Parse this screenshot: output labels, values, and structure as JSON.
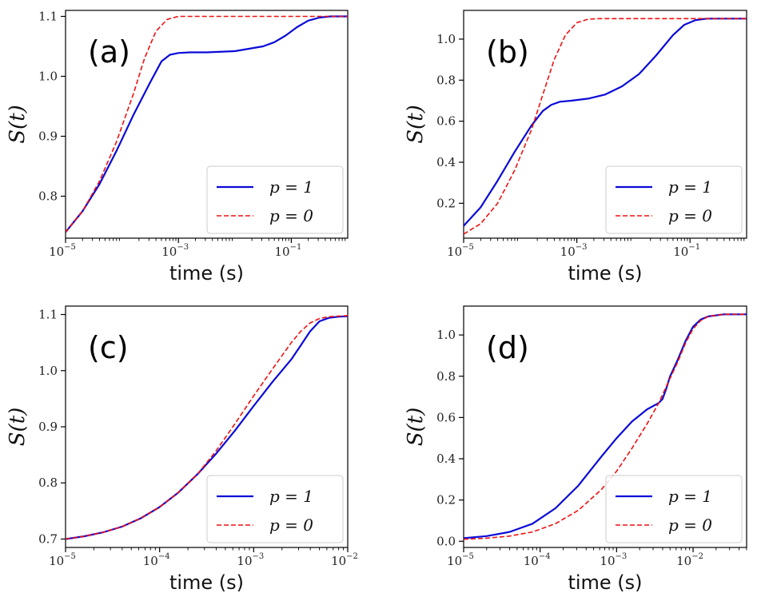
{
  "colors": {
    "p1": "#0a0ad8",
    "p0": "#f01010"
  },
  "chart_data": [
    {
      "type": "line",
      "panel": "(a)",
      "xscale": "log",
      "xlim_exp": [
        -5,
        0
      ],
      "xticks": [
        {
          "base": "10",
          "exp": "−5",
          "e": -5
        },
        {
          "base": "10",
          "exp": "−3",
          "e": -3
        },
        {
          "base": "10",
          "exp": "−1",
          "e": -1
        }
      ],
      "ylim": [
        0.73,
        1.11
      ],
      "yticks": [
        {
          "label": "0.8",
          "v": 0.8
        },
        {
          "label": "0.9",
          "v": 0.9
        },
        {
          "label": "1.0",
          "v": 1.0
        },
        {
          "label": "1.1",
          "v": 1.1
        }
      ],
      "xlabel": "time (s)",
      "ylabel": "S(t)",
      "legend_position": "lower-right",
      "series": [
        {
          "name": "p = 1",
          "style": "solid",
          "x_exp": [
            -5,
            -4.7,
            -4.4,
            -4.1,
            -3.8,
            -3.5,
            -3.3,
            -3.15,
            -3.0,
            -2.8,
            -2.5,
            -2.0,
            -1.5,
            -1.3,
            -1.1,
            -0.9,
            -0.7,
            -0.5,
            -0.3,
            0
          ],
          "y": [
            0.74,
            0.775,
            0.82,
            0.875,
            0.935,
            0.99,
            1.025,
            1.036,
            1.039,
            1.04,
            1.04,
            1.042,
            1.05,
            1.057,
            1.068,
            1.082,
            1.093,
            1.098,
            1.1,
            1.1
          ]
        },
        {
          "name": "p = 0",
          "style": "dashed",
          "x_exp": [
            -5,
            -4.7,
            -4.4,
            -4.1,
            -3.8,
            -3.6,
            -3.4,
            -3.2,
            -3.0,
            -2.8,
            -2.5,
            -2.0,
            -1.0,
            0
          ],
          "y": [
            0.74,
            0.775,
            0.825,
            0.89,
            0.97,
            1.03,
            1.075,
            1.095,
            1.1,
            1.1,
            1.1,
            1.1,
            1.1,
            1.1
          ]
        }
      ]
    },
    {
      "type": "line",
      "panel": "(b)",
      "xscale": "log",
      "xlim_exp": [
        -5,
        0
      ],
      "xticks": [
        {
          "base": "10",
          "exp": "−5",
          "e": -5
        },
        {
          "base": "10",
          "exp": "−3",
          "e": -3
        },
        {
          "base": "10",
          "exp": "−1",
          "e": -1
        }
      ],
      "ylim": [
        0.03,
        1.14
      ],
      "yticks": [
        {
          "label": "0.2",
          "v": 0.2
        },
        {
          "label": "0.4",
          "v": 0.4
        },
        {
          "label": "0.6",
          "v": 0.6
        },
        {
          "label": "0.8",
          "v": 0.8
        },
        {
          "label": "1.0",
          "v": 1.0
        }
      ],
      "xlabel": "time (s)",
      "ylabel": "S(t)",
      "legend_position": "lower-right",
      "series": [
        {
          "name": "p = 1",
          "style": "solid",
          "x_exp": [
            -5,
            -4.7,
            -4.4,
            -4.1,
            -3.8,
            -3.6,
            -3.45,
            -3.3,
            -3.1,
            -2.8,
            -2.5,
            -2.2,
            -1.9,
            -1.6,
            -1.3,
            -1.1,
            -0.9,
            -0.7,
            -0.5,
            0
          ],
          "y": [
            0.09,
            0.18,
            0.31,
            0.45,
            0.58,
            0.65,
            0.68,
            0.695,
            0.7,
            0.71,
            0.73,
            0.77,
            0.83,
            0.92,
            1.02,
            1.07,
            1.093,
            1.1,
            1.1,
            1.1
          ]
        },
        {
          "name": "p = 0",
          "style": "dashed",
          "x_exp": [
            -5,
            -4.7,
            -4.4,
            -4.1,
            -3.8,
            -3.6,
            -3.4,
            -3.2,
            -3.0,
            -2.8,
            -2.6,
            -2.3,
            -2.0,
            -1.0,
            0
          ],
          "y": [
            0.05,
            0.1,
            0.2,
            0.36,
            0.56,
            0.73,
            0.9,
            1.02,
            1.08,
            1.097,
            1.1,
            1.1,
            1.1,
            1.1,
            1.1
          ]
        }
      ]
    },
    {
      "type": "line",
      "panel": "(c)",
      "xscale": "log",
      "xlim_exp": [
        -5,
        -2
      ],
      "xticks": [
        {
          "base": "10",
          "exp": "−5",
          "e": -5
        },
        {
          "base": "10",
          "exp": "−4",
          "e": -4
        },
        {
          "base": "10",
          "exp": "−3",
          "e": -3
        },
        {
          "base": "10",
          "exp": "−2",
          "e": -2
        }
      ],
      "ylim": [
        0.685,
        1.115
      ],
      "yticks": [
        {
          "label": "0.7",
          "v": 0.7
        },
        {
          "label": "0.8",
          "v": 0.8
        },
        {
          "label": "0.9",
          "v": 0.9
        },
        {
          "label": "1.0",
          "v": 1.0
        },
        {
          "label": "1.1",
          "v": 1.1
        }
      ],
      "xlabel": "time (s)",
      "ylabel": "S(t)",
      "legend_position": "lower-right",
      "series": [
        {
          "name": "p = 1",
          "style": "solid",
          "x_exp": [
            -5,
            -4.8,
            -4.6,
            -4.4,
            -4.2,
            -4.0,
            -3.8,
            -3.6,
            -3.4,
            -3.2,
            -3.0,
            -2.8,
            -2.6,
            -2.5,
            -2.4,
            -2.3,
            -2.2,
            -2.1,
            -2.0
          ],
          "y": [
            0.7,
            0.705,
            0.712,
            0.722,
            0.737,
            0.757,
            0.783,
            0.815,
            0.852,
            0.893,
            0.937,
            0.98,
            1.02,
            1.045,
            1.07,
            1.088,
            1.094,
            1.096,
            1.097
          ]
        },
        {
          "name": "p = 0",
          "style": "dashed",
          "x_exp": [
            -5,
            -4.8,
            -4.6,
            -4.4,
            -4.2,
            -4.0,
            -3.8,
            -3.6,
            -3.4,
            -3.2,
            -3.0,
            -2.8,
            -2.6,
            -2.5,
            -2.4,
            -2.3,
            -2.2,
            -2.1,
            -2.0
          ],
          "y": [
            0.7,
            0.705,
            0.712,
            0.722,
            0.737,
            0.757,
            0.783,
            0.815,
            0.857,
            0.905,
            0.955,
            1.003,
            1.05,
            1.07,
            1.085,
            1.093,
            1.096,
            1.097,
            1.098
          ]
        }
      ]
    },
    {
      "type": "line",
      "panel": "(d)",
      "xscale": "log",
      "xlim_exp": [
        -5,
        -1.3
      ],
      "xticks": [
        {
          "base": "10",
          "exp": "−5",
          "e": -5
        },
        {
          "base": "10",
          "exp": "−4",
          "e": -4
        },
        {
          "base": "10",
          "exp": "−3",
          "e": -3
        },
        {
          "base": "10",
          "exp": "−2",
          "e": -2
        }
      ],
      "ylim": [
        -0.03,
        1.14
      ],
      "yticks": [
        {
          "label": "0.0",
          "v": 0.0
        },
        {
          "label": "0.2",
          "v": 0.2
        },
        {
          "label": "0.4",
          "v": 0.4
        },
        {
          "label": "0.6",
          "v": 0.6
        },
        {
          "label": "0.8",
          "v": 0.8
        },
        {
          "label": "1.0",
          "v": 1.0
        }
      ],
      "xlabel": "time (s)",
      "ylabel": "S(t)",
      "legend_position": "lower-right",
      "series": [
        {
          "name": "p = 1",
          "style": "solid",
          "x_exp": [
            -5,
            -4.7,
            -4.4,
            -4.1,
            -3.8,
            -3.5,
            -3.2,
            -3.0,
            -2.8,
            -2.6,
            -2.5,
            -2.45,
            -2.4,
            -2.35,
            -2.3,
            -2.2,
            -2.1,
            -2.0,
            -1.9,
            -1.8,
            -1.6,
            -1.3
          ],
          "y": [
            0.015,
            0.025,
            0.045,
            0.085,
            0.16,
            0.27,
            0.41,
            0.5,
            0.58,
            0.64,
            0.66,
            0.67,
            0.69,
            0.74,
            0.8,
            0.88,
            0.97,
            1.04,
            1.075,
            1.09,
            1.1,
            1.1
          ]
        },
        {
          "name": "p = 0",
          "style": "dashed",
          "x_exp": [
            -5,
            -4.7,
            -4.4,
            -4.1,
            -3.8,
            -3.5,
            -3.2,
            -3.0,
            -2.8,
            -2.6,
            -2.45,
            -2.3,
            -2.2,
            -2.1,
            -2.0,
            -1.9,
            -1.8,
            -1.6,
            -1.3
          ],
          "y": [
            0.01,
            0.015,
            0.025,
            0.045,
            0.085,
            0.15,
            0.25,
            0.34,
            0.45,
            0.57,
            0.67,
            0.79,
            0.87,
            0.96,
            1.03,
            1.07,
            1.09,
            1.1,
            1.1
          ]
        }
      ]
    }
  ]
}
